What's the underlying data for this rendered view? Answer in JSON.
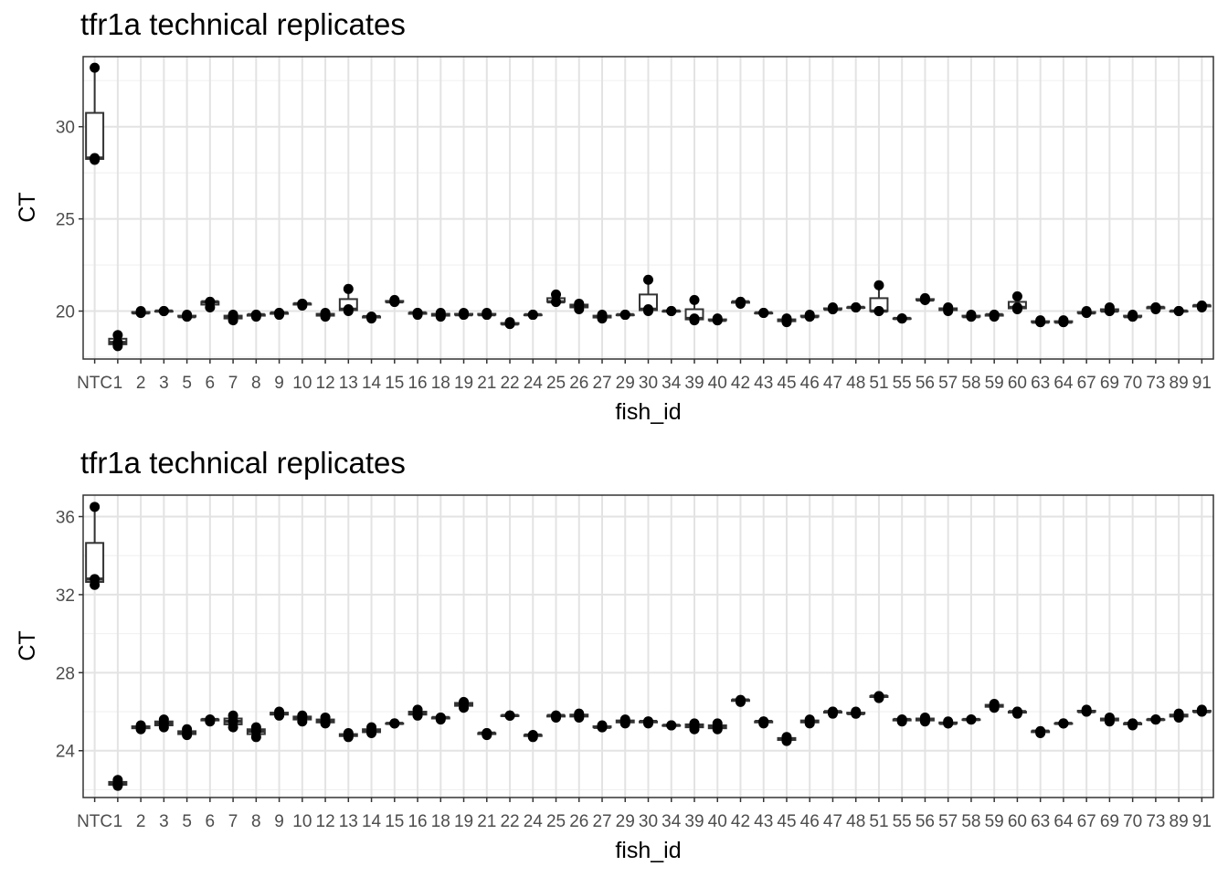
{
  "chart_data": [
    {
      "type": "boxplot",
      "title": "tfr1a technical replicates",
      "xlabel": "fish_id",
      "ylabel": "CT",
      "ylim": [
        17.4,
        33.8
      ],
      "yticks": [
        20,
        25,
        30
      ],
      "grid": true,
      "categories": [
        "NTC",
        "1",
        "2",
        "3",
        "5",
        "6",
        "7",
        "8",
        "9",
        "10",
        "12",
        "13",
        "14",
        "15",
        "16",
        "18",
        "19",
        "21",
        "22",
        "24",
        "25",
        "26",
        "27",
        "29",
        "30",
        "34",
        "39",
        "40",
        "42",
        "43",
        "45",
        "46",
        "47",
        "48",
        "51",
        "55",
        "56",
        "57",
        "58",
        "59",
        "60",
        "63",
        "64",
        "67",
        "69",
        "70",
        "73",
        "89",
        "91"
      ],
      "points": [
        [
          33.2,
          28.2,
          28.3
        ],
        [
          18.7,
          18.1,
          18.3
        ],
        [
          19.9,
          20.0,
          19.9
        ],
        [
          20.0,
          20.0,
          20.0
        ],
        [
          19.7,
          19.7,
          19.8
        ],
        [
          20.5,
          20.2,
          20.5
        ],
        [
          19.8,
          19.5,
          19.7
        ],
        [
          19.8,
          19.8,
          19.7
        ],
        [
          19.9,
          19.8,
          19.9
        ],
        [
          20.4,
          20.3,
          20.4
        ],
        [
          19.9,
          19.7,
          19.8
        ],
        [
          21.2,
          20.0,
          20.1
        ],
        [
          19.7,
          19.6,
          19.7
        ],
        [
          20.5,
          20.5,
          20.6
        ],
        [
          19.9,
          19.8,
          19.9
        ],
        [
          19.9,
          19.7,
          19.8
        ],
        [
          19.8,
          19.8,
          19.9
        ],
        [
          19.9,
          19.8,
          19.8
        ],
        [
          19.3,
          19.4,
          19.3
        ],
        [
          19.8,
          19.8,
          19.8
        ],
        [
          20.9,
          20.5,
          20.5
        ],
        [
          20.4,
          20.1,
          20.3
        ],
        [
          19.8,
          19.6,
          19.7
        ],
        [
          19.8,
          19.8,
          19.8
        ],
        [
          21.7,
          20.1,
          20.0
        ],
        [
          20.0,
          20.0,
          20.0
        ],
        [
          20.6,
          19.5,
          19.6
        ],
        [
          19.6,
          19.5,
          19.5
        ],
        [
          20.5,
          20.4,
          20.5
        ],
        [
          19.9,
          19.9,
          19.9
        ],
        [
          19.6,
          19.4,
          19.5
        ],
        [
          19.7,
          19.7,
          19.8
        ],
        [
          20.2,
          20.1,
          20.1
        ],
        [
          20.2,
          20.2,
          20.2
        ],
        [
          21.4,
          20.0,
          20.0
        ],
        [
          19.6,
          19.6,
          19.6
        ],
        [
          20.7,
          20.6,
          20.6
        ],
        [
          20.2,
          20.0,
          20.1
        ],
        [
          19.8,
          19.7,
          19.7
        ],
        [
          19.8,
          19.7,
          19.8
        ],
        [
          20.8,
          20.1,
          20.2
        ],
        [
          19.5,
          19.4,
          19.4
        ],
        [
          19.4,
          19.5,
          19.4
        ],
        [
          19.9,
          20.0,
          19.9
        ],
        [
          20.0,
          20.2,
          20.0
        ],
        [
          19.8,
          19.7,
          19.7
        ],
        [
          20.2,
          20.1,
          20.2
        ],
        [
          20.0,
          20.0,
          20.0
        ],
        [
          20.3,
          20.2,
          20.3
        ]
      ]
    },
    {
      "type": "boxplot",
      "title": "tfr1a technical replicates",
      "xlabel": "fish_id",
      "ylabel": "CT",
      "ylim": [
        21.6,
        37.1
      ],
      "yticks": [
        24,
        28,
        32,
        36
      ],
      "grid": true,
      "categories": [
        "NTC",
        "1",
        "2",
        "3",
        "5",
        "6",
        "7",
        "8",
        "9",
        "10",
        "12",
        "13",
        "14",
        "15",
        "16",
        "18",
        "19",
        "21",
        "22",
        "24",
        "25",
        "26",
        "27",
        "29",
        "30",
        "34",
        "39",
        "40",
        "42",
        "43",
        "45",
        "46",
        "47",
        "48",
        "51",
        "55",
        "56",
        "57",
        "58",
        "59",
        "60",
        "63",
        "64",
        "67",
        "69",
        "70",
        "73",
        "89",
        "91"
      ],
      "points": [
        [
          36.5,
          32.8,
          32.5
        ],
        [
          22.5,
          22.2,
          22.3
        ],
        [
          25.2,
          25.1,
          25.3
        ],
        [
          25.6,
          25.2,
          25.4
        ],
        [
          25.1,
          24.8,
          24.9
        ],
        [
          25.6,
          25.5,
          25.6
        ],
        [
          25.8,
          25.2,
          25.5
        ],
        [
          25.2,
          24.7,
          25.0
        ],
        [
          26.0,
          25.8,
          25.9
        ],
        [
          25.8,
          25.5,
          25.7
        ],
        [
          25.7,
          25.4,
          25.5
        ],
        [
          24.9,
          24.7,
          24.8
        ],
        [
          25.2,
          24.9,
          25.0
        ],
        [
          25.4,
          25.4,
          25.4
        ],
        [
          26.1,
          25.8,
          25.9
        ],
        [
          25.7,
          25.6,
          25.7
        ],
        [
          26.5,
          26.2,
          26.4
        ],
        [
          24.9,
          24.8,
          24.9
        ],
        [
          25.8,
          25.8,
          25.8
        ],
        [
          24.8,
          24.7,
          24.8
        ],
        [
          25.8,
          25.7,
          25.8
        ],
        [
          25.9,
          25.7,
          25.8
        ],
        [
          25.3,
          25.2,
          25.2
        ],
        [
          25.6,
          25.4,
          25.5
        ],
        [
          25.5,
          25.4,
          25.5
        ],
        [
          25.3,
          25.3,
          25.3
        ],
        [
          25.4,
          25.1,
          25.3
        ],
        [
          25.4,
          25.1,
          25.2
        ],
        [
          26.6,
          26.5,
          26.6
        ],
        [
          25.5,
          25.4,
          25.5
        ],
        [
          24.7,
          24.5,
          24.6
        ],
        [
          25.6,
          25.4,
          25.5
        ],
        [
          26.0,
          25.9,
          26.0
        ],
        [
          26.0,
          25.9,
          25.9
        ],
        [
          26.8,
          26.7,
          26.8
        ],
        [
          25.6,
          25.5,
          25.6
        ],
        [
          25.7,
          25.5,
          25.6
        ],
        [
          25.5,
          25.4,
          25.4
        ],
        [
          25.6,
          25.6,
          25.6
        ],
        [
          26.4,
          26.2,
          26.3
        ],
        [
          26.0,
          25.9,
          26.0
        ],
        [
          25.0,
          24.9,
          25.0
        ],
        [
          25.4,
          25.4,
          25.4
        ],
        [
          26.1,
          26.0,
          26.0
        ],
        [
          25.7,
          25.5,
          25.6
        ],
        [
          25.4,
          25.3,
          25.4
        ],
        [
          25.6,
          25.6,
          25.6
        ],
        [
          25.9,
          25.7,
          25.8
        ],
        [
          26.1,
          26.0,
          26.0
        ]
      ]
    }
  ]
}
